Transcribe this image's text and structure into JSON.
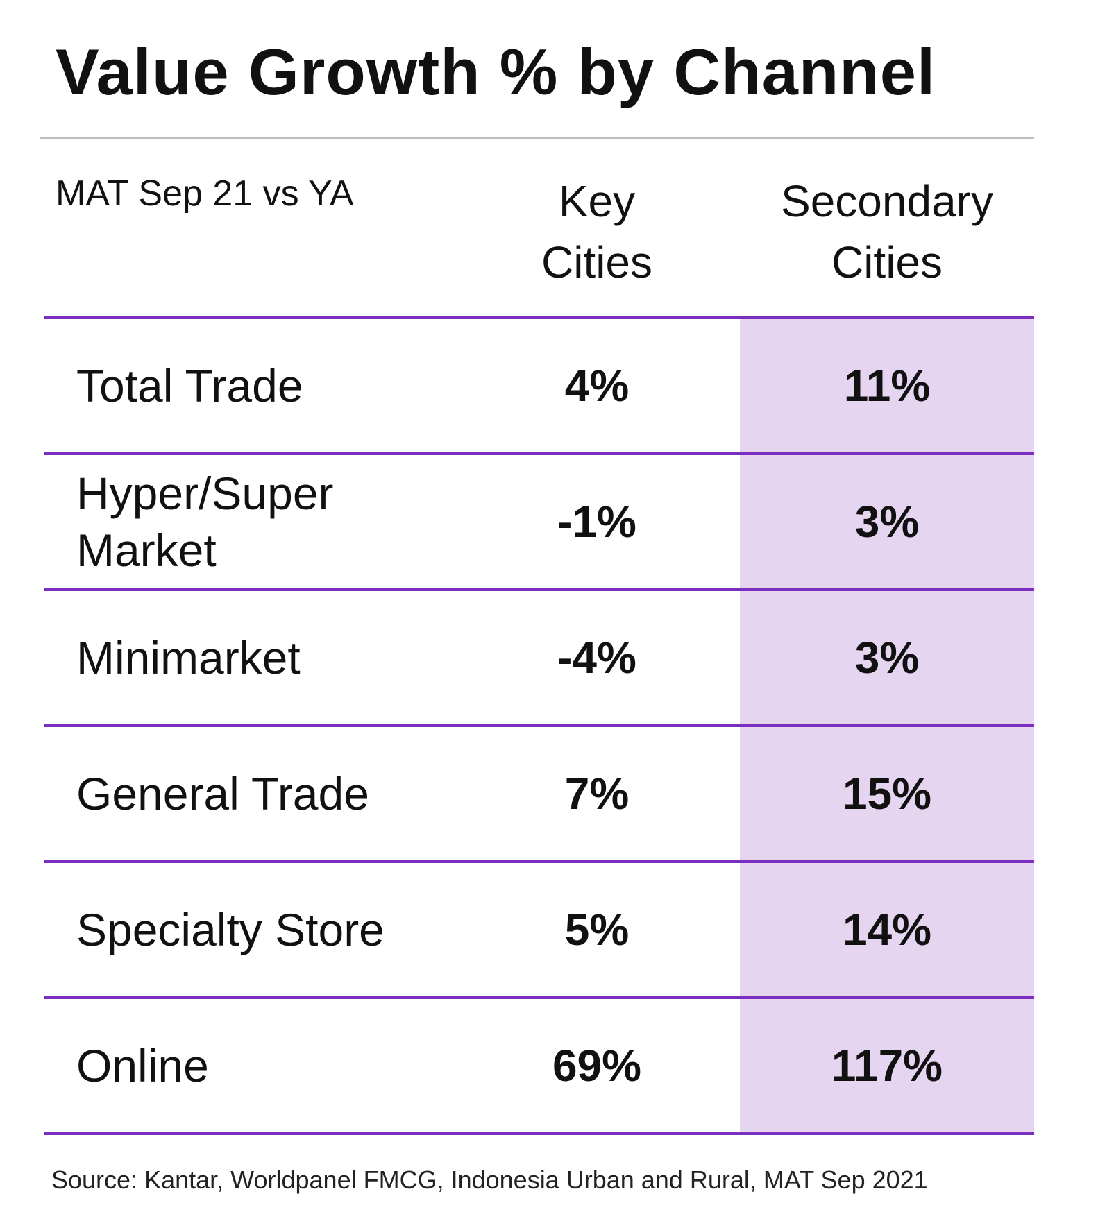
{
  "title": "Value Growth % by Channel",
  "period_label": "MAT Sep 21 vs YA",
  "columns": {
    "key": "Key\nCities",
    "secondary": "Secondary\nCities"
  },
  "colors": {
    "accent_line": "#7b2fbf",
    "secondary_band": "#e6d5f0",
    "top_rule": "#bdbdbd"
  },
  "chart_data": {
    "type": "table",
    "title": "Value Growth % by Channel",
    "subtitle": "MAT Sep 21 vs YA",
    "columns": [
      "Key Cities",
      "Secondary Cities"
    ],
    "unit": "%",
    "rows": [
      {
        "channel": "Total Trade",
        "key": "4%",
        "secondary": "11%"
      },
      {
        "channel": "Hyper/Super Market",
        "key": "-1%",
        "secondary": "3%"
      },
      {
        "channel": "Minimarket",
        "key": "-4%",
        "secondary": "3%"
      },
      {
        "channel": "General Trade",
        "key": "7%",
        "secondary": "15%"
      },
      {
        "channel": "Specialty Store",
        "key": "5%",
        "secondary": "14%"
      },
      {
        "channel": "Online",
        "key": "69%",
        "secondary": "117%"
      }
    ],
    "values_numeric": {
      "key": [
        4,
        -1,
        -4,
        7,
        5,
        69
      ],
      "secondary": [
        11,
        3,
        3,
        15,
        14,
        117
      ]
    }
  },
  "source": "Source: Kantar, Worldpanel FMCG, Indonesia Urban and Rural, MAT Sep 2021"
}
